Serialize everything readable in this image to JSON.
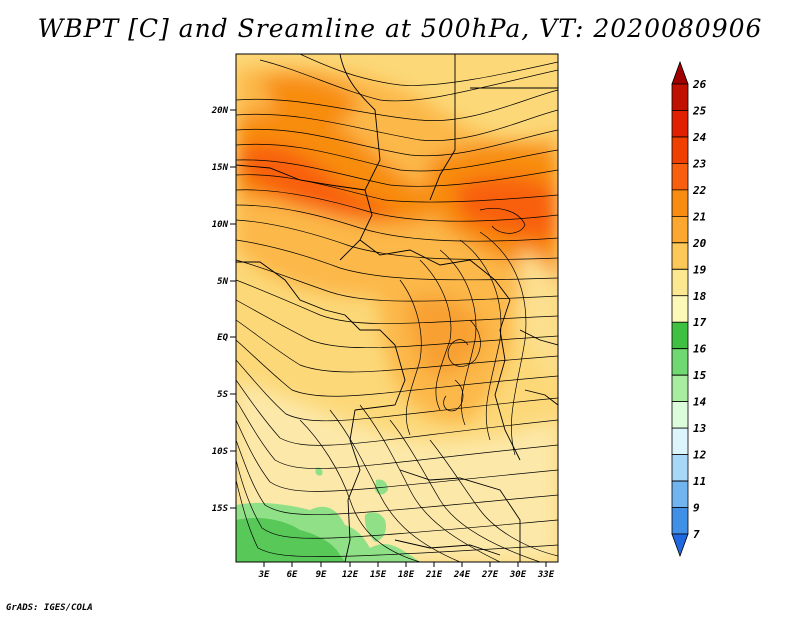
{
  "title": "WBPT [C] and Sreamline at 500hPa, VT: 2020080906",
  "credit": "GrADS: IGES/COLA",
  "lat_labels": [
    "20N",
    "15N",
    "10N",
    "5N",
    "EQ",
    "5S",
    "10S",
    "15S"
  ],
  "lon_labels": [
    "3E",
    "6E",
    "9E",
    "12E",
    "15E",
    "18E",
    "21E",
    "24E",
    "27E",
    "30E",
    "33E"
  ],
  "colorbar": {
    "labels": [
      "26",
      "25",
      "24",
      "23",
      "22",
      "21",
      "20",
      "19",
      "18",
      "17",
      "16",
      "15",
      "14",
      "13",
      "12",
      "11",
      "9",
      "7"
    ],
    "colors": [
      "#a00000",
      "#c01000",
      "#e02000",
      "#f04000",
      "#f86010",
      "#f88c10",
      "#fca830",
      "#fcc858",
      "#fce890",
      "#fcf8b8",
      "#40c040",
      "#70d870",
      "#a8eca0",
      "#dcfcdc",
      "#dcf4fc",
      "#a8d8f8",
      "#70b4f0",
      "#4090e8",
      "#2068e0"
    ]
  }
}
